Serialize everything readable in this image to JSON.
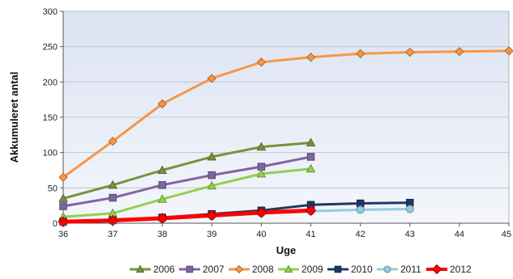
{
  "chart_data": {
    "type": "line",
    "title": "",
    "xlabel": "Uge",
    "ylabel": "Akkumuleret antal",
    "x": [
      36,
      37,
      38,
      39,
      40,
      41,
      42,
      43,
      44,
      45
    ],
    "xlim": [
      36,
      45
    ],
    "ylim": [
      0,
      300
    ],
    "x_ticks": [
      "36",
      "37",
      "38",
      "39",
      "40",
      "41",
      "42",
      "43",
      "44",
      "45"
    ],
    "y_ticks": [
      "0",
      "50",
      "100",
      "150",
      "200",
      "250",
      "300"
    ],
    "grid": "horizontal",
    "legend_position": "bottom",
    "series": [
      {
        "name": "2006",
        "color": "#77933C",
        "marker": "triangle",
        "x": [
          36,
          37,
          38,
          39,
          40,
          41
        ],
        "values": [
          35,
          54,
          75,
          94,
          108,
          114
        ]
      },
      {
        "name": "2007",
        "color": "#8064A2",
        "marker": "square",
        "x": [
          36,
          37,
          38,
          39,
          40,
          41
        ],
        "values": [
          24,
          36,
          54,
          68,
          80,
          94
        ]
      },
      {
        "name": "2008",
        "color": "#F79646",
        "marker": "diamond",
        "x": [
          36,
          37,
          38,
          39,
          40,
          41,
          42,
          43,
          44,
          45
        ],
        "values": [
          65,
          116,
          169,
          205,
          228,
          235,
          240,
          242,
          243,
          244
        ]
      },
      {
        "name": "2009",
        "color": "#92D050",
        "marker": "triangle",
        "x": [
          36,
          37,
          38,
          39,
          40,
          41
        ],
        "values": [
          9,
          14,
          34,
          53,
          70,
          77
        ]
      },
      {
        "name": "2010",
        "color": "#1F3864",
        "marker": "square",
        "x": [
          36,
          37,
          38,
          39,
          40,
          41,
          42,
          43
        ],
        "values": [
          2,
          4,
          8,
          13,
          18,
          26,
          28,
          29
        ]
      },
      {
        "name": "2011",
        "color": "#93CDDD",
        "marker": "circle",
        "x": [
          36,
          37,
          38,
          39,
          40,
          41,
          42,
          43
        ],
        "values": [
          1,
          3,
          6,
          10,
          14,
          17,
          19,
          20
        ]
      },
      {
        "name": "2012",
        "color": "#FF0000",
        "marker": "diamond",
        "x": [
          36,
          37,
          38,
          39,
          40,
          41
        ],
        "values": [
          2,
          4,
          7,
          11,
          15,
          18
        ]
      }
    ]
  }
}
